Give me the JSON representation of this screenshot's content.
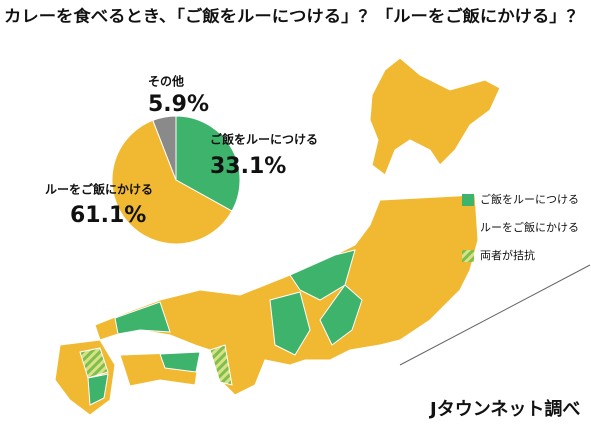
{
  "chart_data": {
    "type": "pie",
    "title": "カレーを食べるとき、「ご飯をルーにつける」？「ルーをご飯にかける」？",
    "categories": [
      "ご飯をルーにつける",
      "ルーをご飯にかける",
      "その他"
    ],
    "values": [
      33.1,
      61.1,
      5.9
    ],
    "value_labels": [
      "33.1%",
      "61.1%",
      "5.9%"
    ],
    "colors": [
      "#3db36b",
      "#f1b932",
      "#8a8a8a"
    ],
    "map_legend": [
      {
        "label": "ご飯をルーにつける",
        "color": "#3db36b"
      },
      {
        "label": "ルーをご飯にかける",
        "color": "#f1b932"
      },
      {
        "label": "両者が拮抗",
        "color": "hatch"
      }
    ],
    "source": "Jタウンネット調べ"
  }
}
